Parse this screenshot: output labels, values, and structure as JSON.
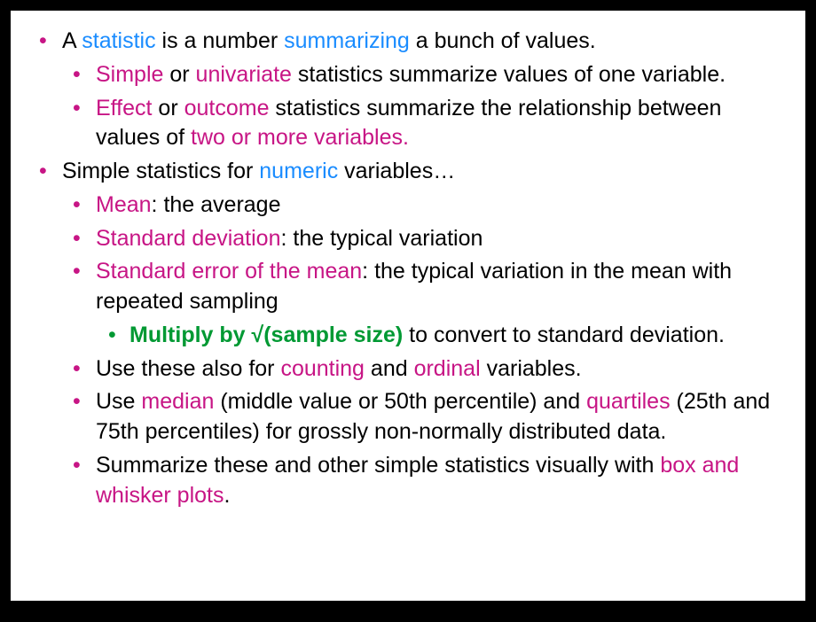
{
  "colors": {
    "blue": "#1a8cff",
    "magenta": "#c71585",
    "green": "#009933",
    "black": "#000000"
  },
  "bulletColors": {
    "lvl1": "#c71585",
    "lvl2": "#c71585",
    "lvl3": "#009933"
  },
  "fontsize": 25,
  "content": {
    "l1a": {
      "t1": "A ",
      "t2": "statistic",
      "t3": " is a number ",
      "t4": "summarizing",
      "t5": " a bunch of values."
    },
    "l1a_sub": {
      "a": {
        "t1": "Simple",
        "t2": " or ",
        "t3": "univariate",
        "t4": " statistics summarize values of one variable."
      },
      "b": {
        "t1": "Effect",
        "t2": " or ",
        "t3": "outcome",
        "t4": " statistics summarize the relationship between values of ",
        "t5": "two or more variables."
      }
    },
    "l1b": {
      "t1": "Simple statistics for ",
      "t2": "numeric",
      "t3": " variables…"
    },
    "l1b_sub": {
      "a": {
        "t1": "Mean",
        "t2": ": the average"
      },
      "b": {
        "t1": "Standard deviation",
        "t2": ": the typical variation"
      },
      "c": {
        "t1": "Standard error of the mean",
        "t2": ": the typical variation in the mean with repeated sampling"
      },
      "c_sub": {
        "t1": "Multiply by √(sample size)",
        "t2": " to convert to standard deviation."
      },
      "d": {
        "t1": "Use these also for ",
        "t2": "counting",
        "t3": " and ",
        "t4": "ordinal",
        "t5": " variables."
      },
      "e": {
        "t1": "Use ",
        "t2": "median",
        "t3": " (middle value or 50th percentile) and ",
        "t4": "quartiles",
        "t5": " (25th and 75th percentiles) for grossly non-normally distributed data."
      },
      "f": {
        "t1": "Summarize these and other simple statistics visually with ",
        "t2": "box and whisker plots",
        "t3": "."
      }
    }
  }
}
